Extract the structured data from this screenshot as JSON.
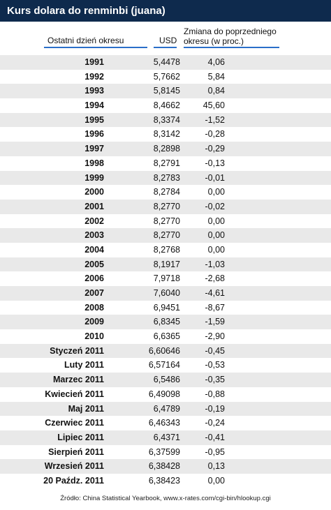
{
  "title": "Kurs dolara do renminbi (juana)",
  "headers": {
    "period": "Ostatni dzień okresu",
    "usd": "USD",
    "change_line1": "Zmiana do poprzedniego",
    "change_line2": "okresu (w proc.)"
  },
  "rows": [
    {
      "period": "1991",
      "usd": "5,4478",
      "change": "4,06"
    },
    {
      "period": "1992",
      "usd": "5,7662",
      "change": "5,84"
    },
    {
      "period": "1993",
      "usd": "5,8145",
      "change": "0,84"
    },
    {
      "period": "1994",
      "usd": "8,4662",
      "change": "45,60"
    },
    {
      "period": "1995",
      "usd": "8,3374",
      "change": "-1,52"
    },
    {
      "period": "1996",
      "usd": "8,3142",
      "change": "-0,28"
    },
    {
      "period": "1997",
      "usd": "8,2898",
      "change": "-0,29"
    },
    {
      "period": "1998",
      "usd": "8,2791",
      "change": "-0,13"
    },
    {
      "period": "1999",
      "usd": "8,2783",
      "change": "-0,01"
    },
    {
      "period": "2000",
      "usd": "8,2784",
      "change": "0,00"
    },
    {
      "period": "2001",
      "usd": "8,2770",
      "change": "-0,02"
    },
    {
      "period": "2002",
      "usd": "8,2770",
      "change": "0,00"
    },
    {
      "period": "2003",
      "usd": "8,2770",
      "change": "0,00"
    },
    {
      "period": "2004",
      "usd": "8,2768",
      "change": "0,00"
    },
    {
      "period": "2005",
      "usd": "8,1917",
      "change": "-1,03"
    },
    {
      "period": "2006",
      "usd": "7,9718",
      "change": "-2,68"
    },
    {
      "period": "2007",
      "usd": "7,6040",
      "change": "-4,61"
    },
    {
      "period": "2008",
      "usd": "6,9451",
      "change": "-8,67"
    },
    {
      "period": "2009",
      "usd": "6,8345",
      "change": "-1,59"
    },
    {
      "period": "2010",
      "usd": "6,6365",
      "change": "-2,90"
    },
    {
      "period": "Styczeń 2011",
      "usd": "6,60646",
      "change": "-0,45"
    },
    {
      "period": "Luty 2011",
      "usd": "6,57164",
      "change": "-0,53"
    },
    {
      "period": "Marzec 2011",
      "usd": "6,5486",
      "change": "-0,35"
    },
    {
      "period": "Kwiecień 2011",
      "usd": "6,49098",
      "change": "-0,88"
    },
    {
      "period": "Maj 2011",
      "usd": "6,4789",
      "change": "-0,19"
    },
    {
      "period": "Czerwiec 2011",
      "usd": "6,46343",
      "change": "-0,24"
    },
    {
      "period": "Lipiec 2011",
      "usd": "6,4371",
      "change": "-0,41"
    },
    {
      "period": "Sierpień 2011",
      "usd": "6,37599",
      "change": "-0,95"
    },
    {
      "period": "Wrzesień 2011",
      "usd": "6,38428",
      "change": "0,13"
    },
    {
      "period": "20 Paźdz. 2011",
      "usd": "6,38423",
      "change": "0,00"
    }
  ],
  "source": "Źródło: China Statistical Yearbook, www.x-rates.com/cgi-bin/hlookup.cgi",
  "colors": {
    "title_bar": "#0e2a4d",
    "header_underline": "#2a6fc9",
    "row_shade": "#e9e9e9"
  },
  "chart_data": {
    "type": "table",
    "title": "Kurs dolara do renminbi (juana)",
    "columns": [
      "Ostatni dzień okresu",
      "USD",
      "Zmiana do poprzedniego okresu (w proc.)"
    ],
    "categories": [
      "1991",
      "1992",
      "1993",
      "1994",
      "1995",
      "1996",
      "1997",
      "1998",
      "1999",
      "2000",
      "2001",
      "2002",
      "2003",
      "2004",
      "2005",
      "2006",
      "2007",
      "2008",
      "2009",
      "2010",
      "Styczeń 2011",
      "Luty 2011",
      "Marzec 2011",
      "Kwiecień 2011",
      "Maj 2011",
      "Czerwiec 2011",
      "Lipiec 2011",
      "Sierpień 2011",
      "Wrzesień 2011",
      "20 Paźdz. 2011"
    ],
    "series": [
      {
        "name": "USD",
        "values": [
          5.4478,
          5.7662,
          5.8145,
          8.4662,
          8.3374,
          8.3142,
          8.2898,
          8.2791,
          8.2783,
          8.2784,
          8.277,
          8.277,
          8.277,
          8.2768,
          8.1917,
          7.9718,
          7.604,
          6.9451,
          6.8345,
          6.6365,
          6.60646,
          6.57164,
          6.5486,
          6.49098,
          6.4789,
          6.46343,
          6.4371,
          6.37599,
          6.38428,
          6.38423
        ]
      },
      {
        "name": "Zmiana do poprzedniego okresu (w proc.)",
        "values": [
          4.06,
          5.84,
          0.84,
          45.6,
          -1.52,
          -0.28,
          -0.29,
          -0.13,
          -0.01,
          0.0,
          -0.02,
          0.0,
          0.0,
          0.0,
          -1.03,
          -2.68,
          -4.61,
          -8.67,
          -1.59,
          -2.9,
          -0.45,
          -0.53,
          -0.35,
          -0.88,
          -0.19,
          -0.24,
          -0.41,
          -0.95,
          0.13,
          0.0
        ]
      }
    ]
  }
}
